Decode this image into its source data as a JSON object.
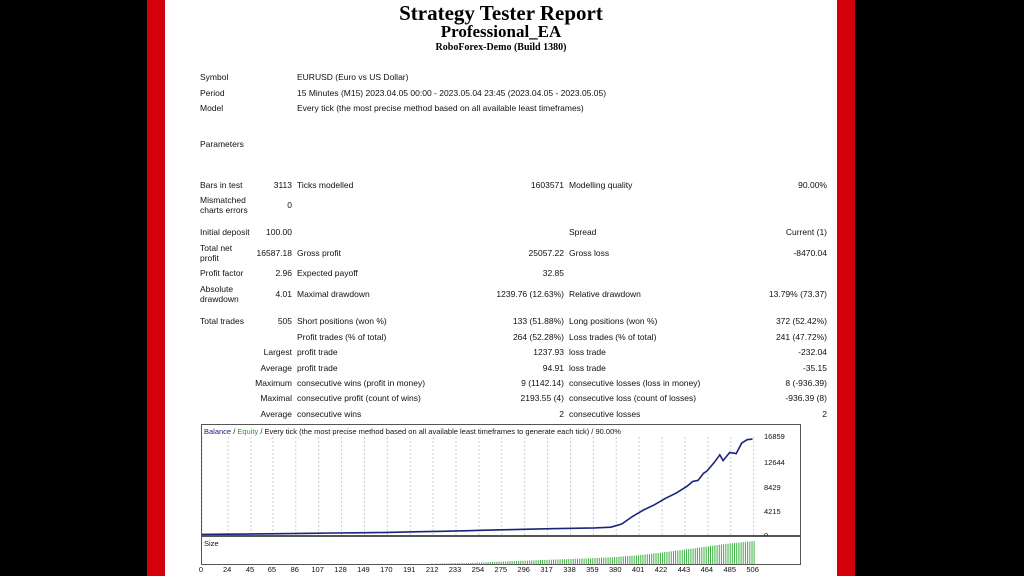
{
  "header": {
    "title": "Strategy Tester Report",
    "ea_name": "Professional_EA",
    "server": "RoboForex-Demo (Build 1380)"
  },
  "info": {
    "symbol_label": "Symbol",
    "symbol_value": "EURUSD (Euro vs US Dollar)",
    "period_label": "Period",
    "period_value": "15 Minutes (M15) 2023.04.05 00:00 - 2023.05.04 23:45 (2023.04.05 - 2023.05.05)",
    "model_label": "Model",
    "model_value": "Every tick (the most precise method based on all available least timeframes)",
    "parameters_label": "Parameters"
  },
  "stats": {
    "bars_label": "Bars in test",
    "bars_value": "3113",
    "ticks_label": "Ticks modelled",
    "ticks_value": "1603571",
    "quality_label": "Modelling quality",
    "quality_value": "90.00%",
    "mismatched_label1": "Mismatched",
    "mismatched_label2": "charts errors",
    "mismatched_value": "0",
    "deposit_label": "Initial deposit",
    "deposit_value": "100.00",
    "spread_label": "Spread",
    "spread_value": "Current (1)",
    "netprofit_label1": "Total net",
    "netprofit_label2": "profit",
    "netprofit_value": "16587.18",
    "grossprofit_label": "Gross profit",
    "grossprofit_value": "25057.22",
    "grossloss_label": "Gross loss",
    "grossloss_value": "-8470.04",
    "pf_label": "Profit factor",
    "pf_value": "2.96",
    "payoff_label": "Expected payoff",
    "payoff_value": "32.85",
    "absdd_label1": "Absolute",
    "absdd_label2": "drawdown",
    "absdd_value": "4.01",
    "maxdd_label": "Maximal drawdown",
    "maxdd_value": "1239.76 (12.63%)",
    "reldd_label": "Relative drawdown",
    "reldd_value": "13.79% (73.37)",
    "trades_label": "Total trades",
    "trades_value": "505",
    "short_label": "Short positions (won %)",
    "short_value": "133 (51.88%)",
    "long_label": "Long positions (won %)",
    "long_value": "372 (52.42%)",
    "profittrades_label": "Profit trades (% of total)",
    "profittrades_value": "264 (52.28%)",
    "losstrades_label": "Loss trades (% of total)",
    "losstrades_value": "241 (47.72%)",
    "largest_label": "Largest",
    "largest_profit_label": "profit trade",
    "largest_profit_value": "1237.93",
    "largest_loss_label": "loss trade",
    "largest_loss_value": "-232.04",
    "average_label": "Average",
    "average_profit_label": "profit trade",
    "average_profit_value": "94.91",
    "average_loss_label": "loss trade",
    "average_loss_value": "-35.15",
    "maximum_label": "Maximum",
    "max_wins_label": "consecutive wins (profit in money)",
    "max_wins_value": "9 (1142.14)",
    "max_losses_label": "consecutive losses (loss in money)",
    "max_losses_value": "8 (-936.39)",
    "maximal_label": "Maximal",
    "maximal_profit_label": "consecutive profit (count of wins)",
    "maximal_profit_value": "2193.55 (4)",
    "maximal_loss_label": "consecutive loss (count of losses)",
    "maximal_loss_value": "-936.39 (8)",
    "average2_label": "Average",
    "avg_wins_label": "consecutive wins",
    "avg_wins_value": "2",
    "avg_losses_label": "consecutive losses",
    "avg_losses_value": "2"
  },
  "chart_data": {
    "type": "line",
    "legend_balance": "Balance",
    "legend_sep": " / ",
    "legend_equity": "Equity",
    "legend_rest": " / Every tick (the most precise method based on all available least timeframes to generate each tick) / 90.00%",
    "size_label": "Size",
    "colors": {
      "balance": "#1a237e",
      "equity": "#2e9b2e",
      "size": "#3cb043"
    },
    "ylim": [
      0,
      16859
    ],
    "yticks": [
      "16859",
      "12644",
      "8429",
      "4215",
      "0"
    ],
    "xticks": [
      "0",
      "24",
      "45",
      "65",
      "86",
      "107",
      "128",
      "149",
      "170",
      "191",
      "212",
      "233",
      "254",
      "275",
      "296",
      "317",
      "338",
      "359",
      "380",
      "401",
      "422",
      "443",
      "464",
      "485",
      "506"
    ],
    "xmax": 510,
    "balance": {
      "x": [
        0,
        20,
        40,
        60,
        80,
        100,
        120,
        140,
        160,
        180,
        200,
        220,
        240,
        260,
        280,
        300,
        320,
        340,
        360,
        375,
        385,
        395,
        405,
        415,
        425,
        435,
        445,
        450,
        455,
        460,
        463,
        470,
        475,
        478,
        484,
        490,
        495,
        500,
        505
      ],
      "y": [
        100,
        130,
        160,
        200,
        240,
        290,
        340,
        380,
        420,
        480,
        560,
        640,
        720,
        820,
        920,
        1000,
        1080,
        1150,
        1230,
        1350,
        1900,
        3200,
        4300,
        5200,
        6300,
        7200,
        8400,
        9200,
        9400,
        10600,
        11000,
        12500,
        13800,
        12800,
        14200,
        14000,
        15800,
        16400,
        16500
      ]
    },
    "size": {
      "x": [
        0,
        100,
        200,
        250,
        275,
        300,
        325,
        350,
        375,
        400,
        425,
        450,
        475,
        506
      ],
      "y": [
        0,
        0,
        0,
        0.05,
        0.1,
        0.14,
        0.18,
        0.22,
        0.27,
        0.35,
        0.48,
        0.62,
        0.78,
        0.92
      ]
    }
  }
}
